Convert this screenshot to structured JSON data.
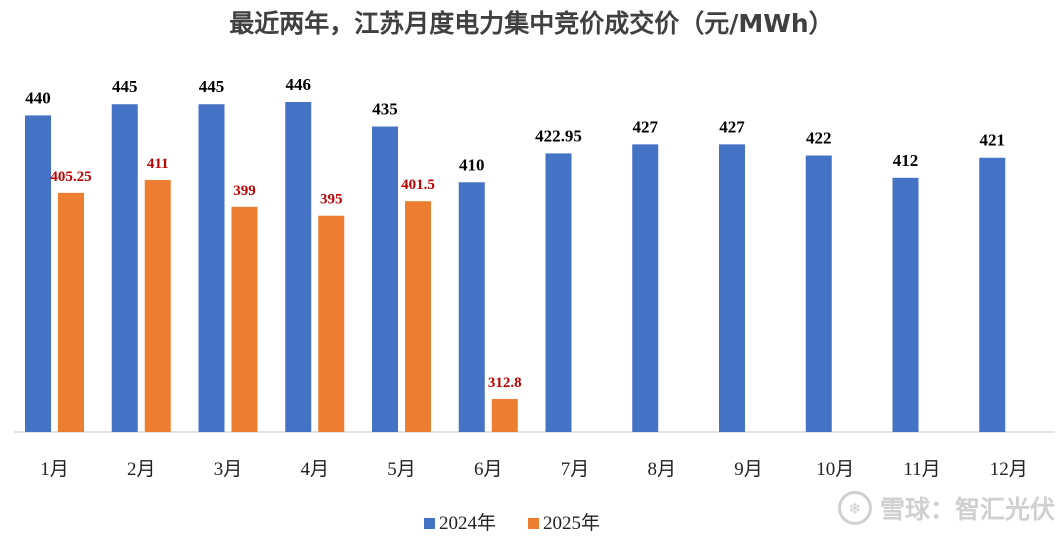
{
  "chart_data": {
    "type": "bar",
    "title": "最近两年，江苏月度电力集中竞价成交价（元/MWh）",
    "categories": [
      "1月",
      "2月",
      "3月",
      "4月",
      "5月",
      "6月",
      "7月",
      "8月",
      "9月",
      "10月",
      "11月",
      "12月"
    ],
    "series": [
      {
        "name": "2024年",
        "color": "#4472C4",
        "labels": [
          "440",
          "445",
          "445",
          "446",
          "435",
          "410",
          "422.95",
          "427",
          "427",
          "422",
          "412",
          "421"
        ],
        "values": [
          440,
          445,
          445,
          446,
          435,
          410,
          422.95,
          427,
          427,
          422,
          412,
          421
        ]
      },
      {
        "name": "2025年",
        "color": "#ED7D31",
        "label_color": "#C00000",
        "labels": [
          "405.25",
          "411",
          "399",
          "395",
          "401.5",
          "312.8",
          null,
          null,
          null,
          null,
          null,
          null
        ],
        "values": [
          405.25,
          411,
          399,
          395,
          401.5,
          312.8,
          null,
          null,
          null,
          null,
          null,
          null
        ]
      }
    ],
    "ylim": [
      298,
      462
    ],
    "grid": false,
    "legend_position": "bottom"
  },
  "watermark": "雪球：智汇光伏",
  "watermark_icon": "snowball-logo-icon"
}
